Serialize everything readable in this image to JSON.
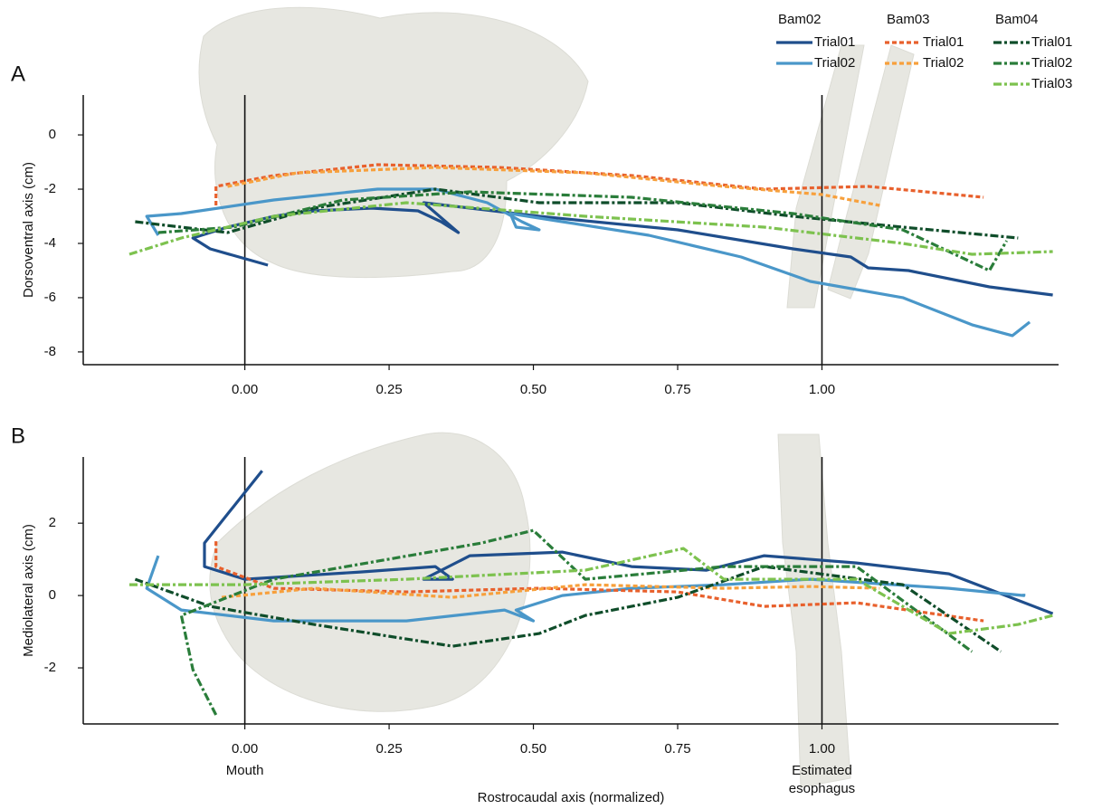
{
  "chart_data": [
    {
      "type": "line",
      "panel_label": "A",
      "ylabel": "Dorsoventral axis (cm)",
      "legend": true,
      "xlim": [
        -0.28,
        1.41
      ],
      "ylim": [
        -8.47,
        1.47
      ],
      "xticks": [
        {
          "value": 0,
          "label": "0.00"
        },
        {
          "value": 0.25,
          "label": "0.25"
        },
        {
          "value": 0.5,
          "label": "0.50"
        },
        {
          "value": 0.75,
          "label": "0.75"
        },
        {
          "value": 1,
          "label": "1.00"
        }
      ],
      "yticks": [
        -8,
        -6,
        -4,
        -2,
        0
      ],
      "vlines": [
        {
          "x": 0
        },
        {
          "x": 1
        }
      ],
      "series_groups": [
        {
          "name": "Bam02",
          "series": [
            {
              "name": "Trial01",
              "color": "#1f4e8c",
              "linestyle": "solid",
              "x": [
                0.04,
                -0.06,
                -0.09,
                -0.03,
                0.05,
                0.12,
                0.22,
                0.3,
                0.34,
                0.37,
                0.31,
                0.51,
                0.75,
                0.95,
                1.05,
                1.08,
                1.15,
                1.29,
                1.4
              ],
              "values": [
                -4.8,
                -4.2,
                -3.8,
                -3.4,
                -3.0,
                -2.8,
                -2.7,
                -2.8,
                -3.2,
                -3.6,
                -2.5,
                -3.0,
                -3.5,
                -4.2,
                -4.5,
                -4.9,
                -5.0,
                -5.6,
                -5.9
              ]
            },
            {
              "name": "Trial02",
              "color": "#4a97c9",
              "linestyle": "solid",
              "x": [
                -0.15,
                -0.17,
                -0.11,
                0.05,
                0.23,
                0.33,
                0.42,
                0.48,
                0.51,
                0.47,
                0.46,
                0.55,
                0.7,
                0.86,
                0.98,
                1.14,
                1.26,
                1.33,
                1.36
              ],
              "values": [
                -3.7,
                -3.0,
                -2.9,
                -2.4,
                -2.0,
                -2.0,
                -2.5,
                -3.2,
                -3.5,
                -3.4,
                -2.9,
                -3.2,
                -3.7,
                -4.5,
                -5.4,
                -6.0,
                -7.0,
                -7.4,
                -6.9
              ]
            }
          ]
        },
        {
          "name": "Bam03",
          "series": [
            {
              "name": "Trial01",
              "color": "#e8602c",
              "linestyle": "dotted",
              "x": [
                -0.05,
                -0.05,
                0.05,
                0.23,
                0.44,
                0.67,
                0.9,
                1.08,
                1.28
              ],
              "values": [
                -2.6,
                -1.9,
                -1.5,
                -1.1,
                -1.2,
                -1.5,
                -2.0,
                -1.9,
                -2.3
              ]
            },
            {
              "name": "Trial02",
              "color": "#f7a03c",
              "linestyle": "dotted",
              "x": [
                -0.03,
                0.09,
                0.33,
                0.59,
                0.83,
                1.0,
                1.1
              ],
              "values": [
                -1.9,
                -1.4,
                -1.2,
                -1.4,
                -1.9,
                -2.2,
                -2.6
              ]
            }
          ]
        },
        {
          "name": "Bam04",
          "series": [
            {
              "name": "Trial01",
              "color": "#0f4d2a",
              "linestyle": "dashdot",
              "x": [
                -0.19,
                -0.03,
                0.12,
                0.33,
                0.51,
                0.75,
                0.95,
                1.14,
                1.34
              ],
              "values": [
                -3.2,
                -3.6,
                -2.7,
                -2.0,
                -2.5,
                -2.5,
                -3.0,
                -3.4,
                -3.8
              ]
            },
            {
              "name": "Trial02",
              "color": "#2a7d3a",
              "linestyle": "dashdot",
              "x": [
                -0.15,
                -0.02,
                0.17,
                0.39,
                0.67,
                0.95,
                1.14,
                1.29,
                1.32
              ],
              "values": [
                -3.6,
                -3.4,
                -2.4,
                -2.1,
                -2.3,
                -2.9,
                -3.5,
                -5.0,
                -3.9
              ]
            },
            {
              "name": "Trial03",
              "color": "#7dc24f",
              "linestyle": "dashdot",
              "x": [
                -0.2,
                -0.11,
                0.05,
                0.28,
                0.59,
                0.9,
                1.14,
                1.26,
                1.4
              ],
              "values": [
                -4.4,
                -3.8,
                -3.0,
                -2.5,
                -3.0,
                -3.4,
                -4.0,
                -4.4,
                -4.3
              ]
            }
          ]
        }
      ]
    },
    {
      "type": "line",
      "panel_label": "B",
      "ylabel": "Mediolateral axis (cm)",
      "xlabel": "Rostrocaudal axis (normalized)",
      "legend": false,
      "xlim": [
        -0.28,
        1.41
      ],
      "ylim": [
        -3.55,
        3.83
      ],
      "xticks": [
        {
          "value": 0,
          "label": "0.00"
        },
        {
          "value": 0.25,
          "label": "0.25"
        },
        {
          "value": 0.5,
          "label": "0.50"
        },
        {
          "value": 0.75,
          "label": "0.75"
        },
        {
          "value": 1,
          "label": "1.00"
        }
      ],
      "yticks": [
        -2,
        0,
        2
      ],
      "vlines": [
        {
          "x": 0,
          "label": [
            "Mouth"
          ]
        },
        {
          "x": 1,
          "label": [
            "Estimated",
            "esophagus"
          ]
        }
      ],
      "series_groups": [
        {
          "series": [
            {
              "color": "#1f4e8c",
              "linestyle": "solid",
              "x": [
                0.03,
                -0.02,
                -0.07,
                -0.07,
                0,
                0.2,
                0.33,
                0.36,
                0.31,
                0.39,
                0.55,
                0.67,
                0.8,
                0.9,
                1.06,
                1.22,
                1.4
              ],
              "values": [
                3.45,
                2.45,
                1.45,
                0.8,
                0.45,
                0.65,
                0.8,
                0.45,
                0.45,
                1.1,
                1.2,
                0.8,
                0.7,
                1.1,
                0.9,
                0.6,
                -0.5
              ]
            },
            {
              "color": "#4a97c9",
              "linestyle": "solid",
              "x": [
                -0.15,
                -0.17,
                -0.11,
                0.05,
                0.28,
                0.45,
                0.5,
                0.47,
                0.55,
                0.67,
                0.83,
                0.98,
                1.22,
                1.35,
                1.35
              ],
              "values": [
                1.1,
                0.2,
                -0.4,
                -0.7,
                -0.7,
                -0.4,
                -0.7,
                -0.4,
                0,
                0.2,
                0.3,
                0.45,
                0.2,
                0,
                0.05
              ]
            }
          ]
        },
        {
          "series": [
            {
              "color": "#e8602c",
              "linestyle": "dotted",
              "x": [
                -0.05,
                -0.05,
                0.05,
                0.28,
                0.51,
                0.75,
                0.9,
                1.06,
                1.28
              ],
              "values": [
                1.5,
                0.8,
                0.2,
                0.1,
                0.2,
                0.1,
                -0.3,
                -0.2,
                -0.7
              ]
            },
            {
              "color": "#f7a03c",
              "linestyle": "dotted",
              "x": [
                -0.04,
                0.12,
                0.36,
                0.59,
                0.83,
                0.98,
                1.1
              ],
              "values": [
                -0.05,
                0.2,
                -0.05,
                0.3,
                0.2,
                0.25,
                0.2
              ]
            }
          ]
        },
        {
          "series": [
            {
              "color": "#0f4d2a",
              "linestyle": "dashdot",
              "x": [
                -0.19,
                -0.06,
                0.12,
                0.36,
                0.51,
                0.59,
                0.75,
                0.9,
                1.14,
                1.31
              ],
              "values": [
                0.45,
                -0.3,
                -0.8,
                -1.4,
                -1.05,
                -0.55,
                -0.05,
                0.8,
                0.3,
                -1.55
              ]
            },
            {
              "color": "#2a7d3a",
              "linestyle": "dashdot",
              "x": [
                -0.05,
                -0.09,
                -0.11,
                0.05,
                0.23,
                0.41,
                0.5,
                0.59,
                0.83,
                1.06,
                1.26
              ],
              "values": [
                -3.3,
                -2.05,
                -0.55,
                0.45,
                0.95,
                1.45,
                1.8,
                0.45,
                0.8,
                0.8,
                -1.55
              ]
            },
            {
              "color": "#7dc24f",
              "linestyle": "dashdot",
              "x": [
                -0.2,
                0,
                0.28,
                0.59,
                0.76,
                0.83,
                1.06,
                1.22,
                1.34,
                1.4
              ],
              "values": [
                0.3,
                0.3,
                0.45,
                0.7,
                1.3,
                0.45,
                0.45,
                -1.05,
                -0.8,
                -0.55
              ]
            }
          ]
        }
      ]
    }
  ]
}
